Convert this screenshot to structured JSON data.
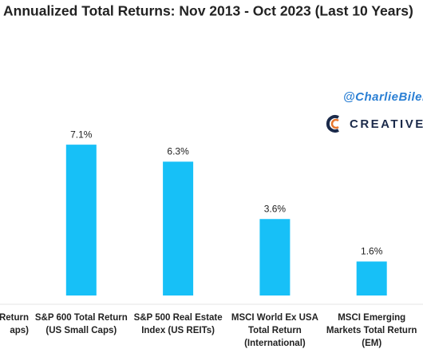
{
  "chart_data": {
    "type": "bar",
    "title": "Annualized Total Returns: Nov 2013 - Oct 2023 (Last 10 Years)",
    "watermark": {
      "handle": "@CharlieBilel",
      "brand": "CREATIVE PLA"
    },
    "categories": [
      [
        "Return",
        "aps)"
      ],
      [
        "S&P 600 Total Return",
        "(US Small Caps)"
      ],
      [
        "S&P 500 Real Estate",
        "Index (US REITs)"
      ],
      [
        "MSCI World Ex USA",
        "Total Return",
        "(International)"
      ],
      [
        "MSCI Emerging",
        "Markets Total Return",
        "(EM)"
      ]
    ],
    "values": [
      null,
      7.1,
      6.3,
      3.6,
      1.6
    ],
    "value_labels": [
      null,
      "7.1%",
      "6.3%",
      "3.6%",
      "1.6%"
    ],
    "color": "#17c0f7",
    "ylim": [
      0,
      8
    ]
  }
}
